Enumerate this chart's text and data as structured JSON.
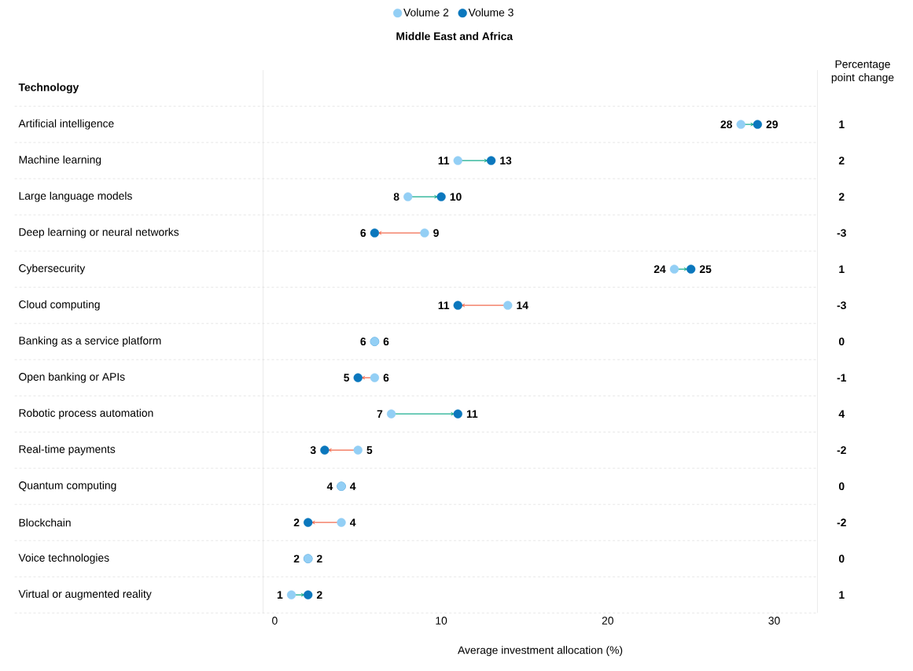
{
  "chart_data": {
    "type": "scatter",
    "orientation": "horizontal",
    "title": "Middle East and Africa",
    "xlabel": "Average investment allocation (%)",
    "ylabel": "Technology",
    "categories": [
      "Artificial intelligence",
      "Machine learning",
      "Large language models",
      "Deep learning or neural networks",
      "Cybersecurity",
      "Cloud computing",
      "Banking as a service platform",
      "Open banking or APIs",
      "Robotic process automation",
      "Real-time payments",
      "Quantum computing",
      "Blockchain",
      "Voice technologies",
      "Virtual or augmented reality"
    ],
    "series": [
      {
        "name": "Volume 2",
        "color": "#93cff5",
        "values": [
          28,
          11,
          8,
          9,
          24,
          14,
          6,
          6,
          7,
          5,
          4,
          4,
          2,
          1
        ]
      },
      {
        "name": "Volume 3",
        "color": "#0b77bd",
        "values": [
          29,
          13,
          10,
          6,
          25,
          11,
          6,
          5,
          11,
          3,
          4,
          2,
          2,
          2
        ]
      }
    ],
    "xlim": [
      -0.7,
      32.6
    ],
    "xticks": [
      0,
      10,
      20,
      30
    ],
    "data_labels": true,
    "legend": "top",
    "grid": "y",
    "annotations": [
      "Percentage point change",
      "1",
      "2",
      "2",
      "-3",
      "1",
      "-3",
      "0",
      "-1",
      "4",
      "-2",
      "0",
      "-2",
      "0",
      "1"
    ]
  }
}
